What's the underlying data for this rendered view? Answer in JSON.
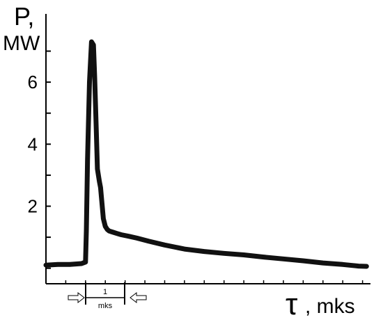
{
  "chart_data": {
    "type": "line",
    "ylabel_symbol": "P,",
    "ylabel_unit": "MW",
    "xlabel_symbol": "τ",
    "xlabel_unit": ", mks",
    "yticks": [
      {
        "value": 2,
        "label": "2"
      },
      {
        "value": 4,
        "label": "4"
      },
      {
        "value": 6,
        "label": "6"
      }
    ],
    "ylim": [
      -0.5,
      8.2
    ],
    "xlim": [
      0,
      8.2
    ],
    "scale_bar": {
      "label_top": "1",
      "label_bottom": "mks",
      "from": 1.0,
      "to": 2.0
    },
    "series": [
      {
        "x": [
          0.0,
          0.3,
          0.6,
          0.9,
          1.0,
          1.02,
          1.05,
          1.1,
          1.15,
          1.2,
          1.23,
          1.27,
          1.3,
          1.35,
          1.38,
          1.4,
          1.45,
          1.5,
          1.55,
          1.6,
          1.65,
          1.7,
          1.8,
          1.9,
          2.1,
          2.3,
          2.6,
          3.0,
          3.5,
          4.0,
          4.5,
          5.0,
          5.5,
          6.0,
          6.5,
          7.0,
          7.5,
          7.9,
          8.1
        ],
        "y": [
          0.1,
          0.12,
          0.12,
          0.15,
          0.2,
          1.2,
          3.5,
          6.0,
          7.3,
          7.2,
          6.2,
          4.5,
          3.2,
          2.8,
          2.6,
          2.3,
          1.6,
          1.35,
          1.25,
          1.2,
          1.18,
          1.16,
          1.12,
          1.08,
          1.03,
          0.97,
          0.87,
          0.75,
          0.62,
          0.54,
          0.48,
          0.43,
          0.36,
          0.3,
          0.24,
          0.17,
          0.12,
          0.07,
          0.06
        ]
      }
    ]
  }
}
